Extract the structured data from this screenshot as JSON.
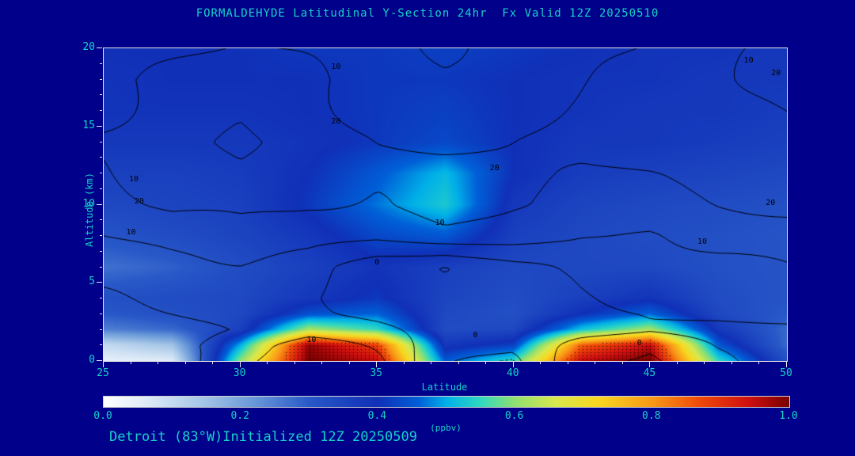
{
  "footer": "Detroit (83°W)Initialized 12Z 20250509",
  "colors": {
    "background": "#00008b",
    "accent_text": "#16d2c6",
    "axis_frame": "#e6e6e6",
    "contour_line": "#000000"
  },
  "chart_data": {
    "type": "heatmap",
    "title": "FORMALDEHYDE Latitudinal Y-Section 24hr  Fx Valid 12Z 20250510",
    "xlabel": "Latitude",
    "ylabel": "Altitude (km)",
    "x_range": [
      25,
      50
    ],
    "y_range": [
      0,
      20
    ],
    "x_ticks": [
      25,
      30,
      35,
      40,
      45,
      50
    ],
    "y_ticks": [
      0,
      5,
      10,
      15,
      20
    ],
    "x": [
      25,
      27.5,
      30,
      32.5,
      35,
      37.5,
      40,
      42.5,
      45,
      47.5,
      50
    ],
    "y": [
      0,
      1,
      2,
      3,
      4,
      6,
      8,
      10,
      12,
      14,
      16,
      18,
      20
    ],
    "values": [
      [
        0.05,
        0.06,
        0.6,
        1.0,
        0.95,
        0.45,
        0.55,
        0.95,
        1.0,
        0.55,
        0.32
      ],
      [
        0.1,
        0.15,
        0.5,
        0.98,
        0.88,
        0.38,
        0.42,
        0.85,
        0.95,
        0.45,
        0.28
      ],
      [
        0.25,
        0.28,
        0.36,
        0.62,
        0.55,
        0.33,
        0.34,
        0.52,
        0.62,
        0.38,
        0.28
      ],
      [
        0.3,
        0.32,
        0.34,
        0.44,
        0.46,
        0.34,
        0.32,
        0.4,
        0.46,
        0.34,
        0.3
      ],
      [
        0.32,
        0.33,
        0.34,
        0.38,
        0.41,
        0.35,
        0.33,
        0.36,
        0.39,
        0.33,
        0.31
      ],
      [
        0.27,
        0.29,
        0.33,
        0.36,
        0.39,
        0.36,
        0.34,
        0.34,
        0.34,
        0.32,
        0.31
      ],
      [
        0.31,
        0.33,
        0.35,
        0.38,
        0.43,
        0.45,
        0.36,
        0.34,
        0.33,
        0.32,
        0.31
      ],
      [
        0.34,
        0.35,
        0.36,
        0.41,
        0.47,
        0.53,
        0.38,
        0.35,
        0.34,
        0.33,
        0.32
      ],
      [
        0.36,
        0.36,
        0.37,
        0.4,
        0.45,
        0.51,
        0.4,
        0.37,
        0.36,
        0.35,
        0.34
      ],
      [
        0.38,
        0.38,
        0.38,
        0.39,
        0.41,
        0.43,
        0.4,
        0.38,
        0.38,
        0.37,
        0.36
      ],
      [
        0.39,
        0.39,
        0.39,
        0.4,
        0.41,
        0.42,
        0.4,
        0.39,
        0.38,
        0.38,
        0.37
      ],
      [
        0.39,
        0.4,
        0.4,
        0.4,
        0.41,
        0.41,
        0.4,
        0.39,
        0.39,
        0.38,
        0.38
      ],
      [
        0.4,
        0.4,
        0.4,
        0.41,
        0.41,
        0.42,
        0.41,
        0.4,
        0.39,
        0.39,
        0.38
      ]
    ],
    "colormap": [
      {
        "p": 0.0,
        "c": "#ffffff"
      },
      {
        "p": 0.06,
        "c": "#e0ecf8"
      },
      {
        "p": 0.14,
        "c": "#a8c8e8"
      },
      {
        "p": 0.22,
        "c": "#6898d8"
      },
      {
        "p": 0.3,
        "c": "#2858c8"
      },
      {
        "p": 0.4,
        "c": "#1030b8"
      },
      {
        "p": 0.46,
        "c": "#0060d8"
      },
      {
        "p": 0.5,
        "c": "#00b0e8"
      },
      {
        "p": 0.55,
        "c": "#30d8c0"
      },
      {
        "p": 0.6,
        "c": "#90e070"
      },
      {
        "p": 0.66,
        "c": "#d8e84c"
      },
      {
        "p": 0.72,
        "c": "#f8d820"
      },
      {
        "p": 0.8,
        "c": "#f89818"
      },
      {
        "p": 0.87,
        "c": "#f04808"
      },
      {
        "p": 0.94,
        "c": "#d01010"
      },
      {
        "p": 1.0,
        "c": "#780000"
      }
    ],
    "colorbar": {
      "ticks": [
        "0.0",
        "0.2",
        "0.4",
        "0.6",
        "0.8",
        "1.0"
      ],
      "label": "(ppbv)",
      "min": 0,
      "max": 1
    },
    "contours": {
      "levels": [
        -1,
        0,
        5,
        10,
        15,
        20
      ],
      "field": [
        [
          1,
          3,
          10,
          13,
          11,
          1,
          -2,
          8,
          12,
          6,
          1
        ],
        [
          2,
          4,
          9,
          12,
          9,
          2,
          0,
          6,
          10,
          5,
          2
        ],
        [
          3,
          4,
          6,
          8,
          6,
          3,
          1,
          3,
          5,
          4,
          4
        ],
        [
          4,
          5,
          6,
          6,
          4,
          2,
          2,
          4,
          5,
          6,
          7
        ],
        [
          5,
          6,
          7,
          6,
          3,
          1,
          3,
          5,
          6,
          7,
          8
        ],
        [
          7,
          8,
          9,
          8,
          2,
          -1,
          4,
          7,
          8,
          9,
          10
        ],
        [
          10,
          12,
          13,
          12,
          11,
          13,
          12,
          10,
          10,
          12,
          13
        ],
        [
          12,
          16,
          17,
          15,
          14,
          19,
          15,
          12,
          13,
          15,
          16
        ],
        [
          14,
          17,
          19,
          17,
          16,
          18,
          16,
          14,
          15,
          17,
          18
        ],
        [
          16,
          18,
          21,
          18,
          15,
          13,
          15,
          17,
          19,
          20,
          20
        ],
        [
          15,
          17,
          19,
          17,
          14,
          12,
          14,
          16,
          18,
          20,
          21
        ],
        [
          14,
          16,
          18,
          16,
          13,
          11,
          13,
          15,
          17,
          19,
          22
        ],
        [
          12,
          14,
          16,
          14,
          12,
          10,
          12,
          14,
          16,
          18,
          21
        ]
      ]
    },
    "contour_labels": [
      {
        "x": 33.5,
        "y": 18.8,
        "t": "10"
      },
      {
        "x": 33.5,
        "y": 15.3,
        "t": "20"
      },
      {
        "x": 26.1,
        "y": 11.6,
        "t": "10"
      },
      {
        "x": 26.3,
        "y": 10.2,
        "t": "20"
      },
      {
        "x": 26.0,
        "y": 8.2,
        "t": "10"
      },
      {
        "x": 39.3,
        "y": 12.3,
        "t": "20"
      },
      {
        "x": 37.3,
        "y": 8.8,
        "t": "10"
      },
      {
        "x": 35.0,
        "y": 6.3,
        "t": "0"
      },
      {
        "x": 32.6,
        "y": 1.3,
        "t": "10"
      },
      {
        "x": 38.6,
        "y": 1.6,
        "t": "0"
      },
      {
        "x": 44.6,
        "y": 1.1,
        "t": "0"
      },
      {
        "x": 46.9,
        "y": 7.6,
        "t": "10"
      },
      {
        "x": 48.6,
        "y": 19.2,
        "t": "10"
      },
      {
        "x": 49.6,
        "y": 18.4,
        "t": "20"
      },
      {
        "x": 49.4,
        "y": 10.1,
        "t": "20"
      }
    ]
  }
}
